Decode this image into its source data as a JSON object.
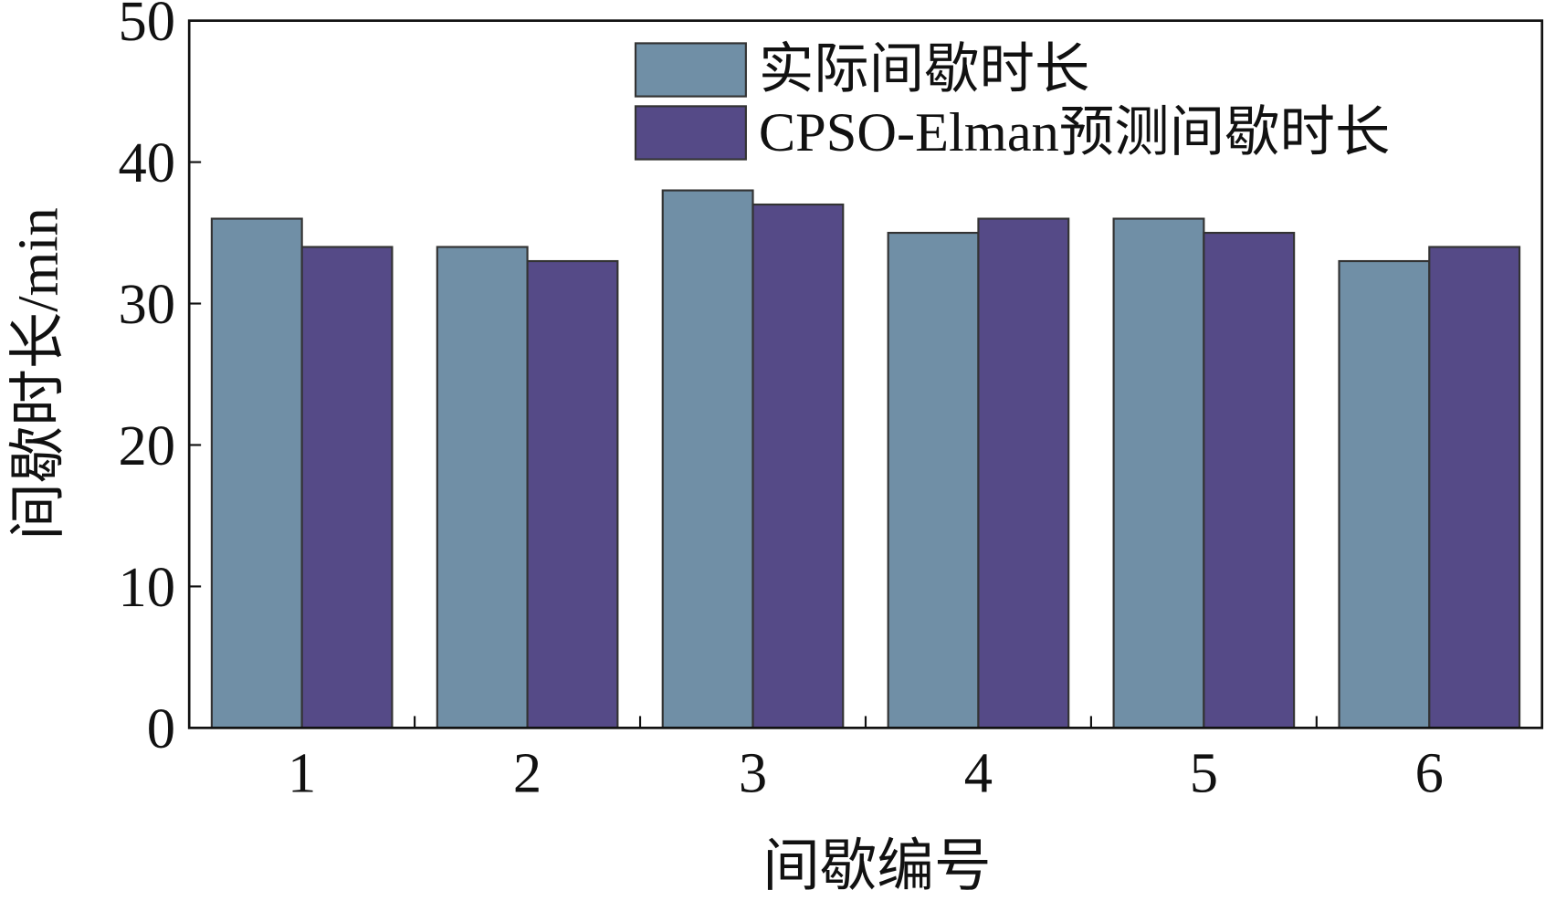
{
  "chart_data": {
    "type": "bar",
    "categories": [
      "1",
      "2",
      "3",
      "4",
      "5",
      "6"
    ],
    "series": [
      {
        "name": "实际间歇时长",
        "color": "#708fa6",
        "values": [
          36,
          34,
          38,
          35,
          36,
          33
        ]
      },
      {
        "name": "CPSO-Elman预测间歇时长",
        "color": "#554a87",
        "values": [
          34,
          33,
          37,
          36,
          35,
          34
        ]
      }
    ],
    "x_label": "间歇编号",
    "y_label": "间歇时长/min",
    "ylim": [
      0,
      50
    ],
    "yticks": [
      0,
      10,
      20,
      30,
      40,
      50
    ],
    "legend": "upper right"
  }
}
